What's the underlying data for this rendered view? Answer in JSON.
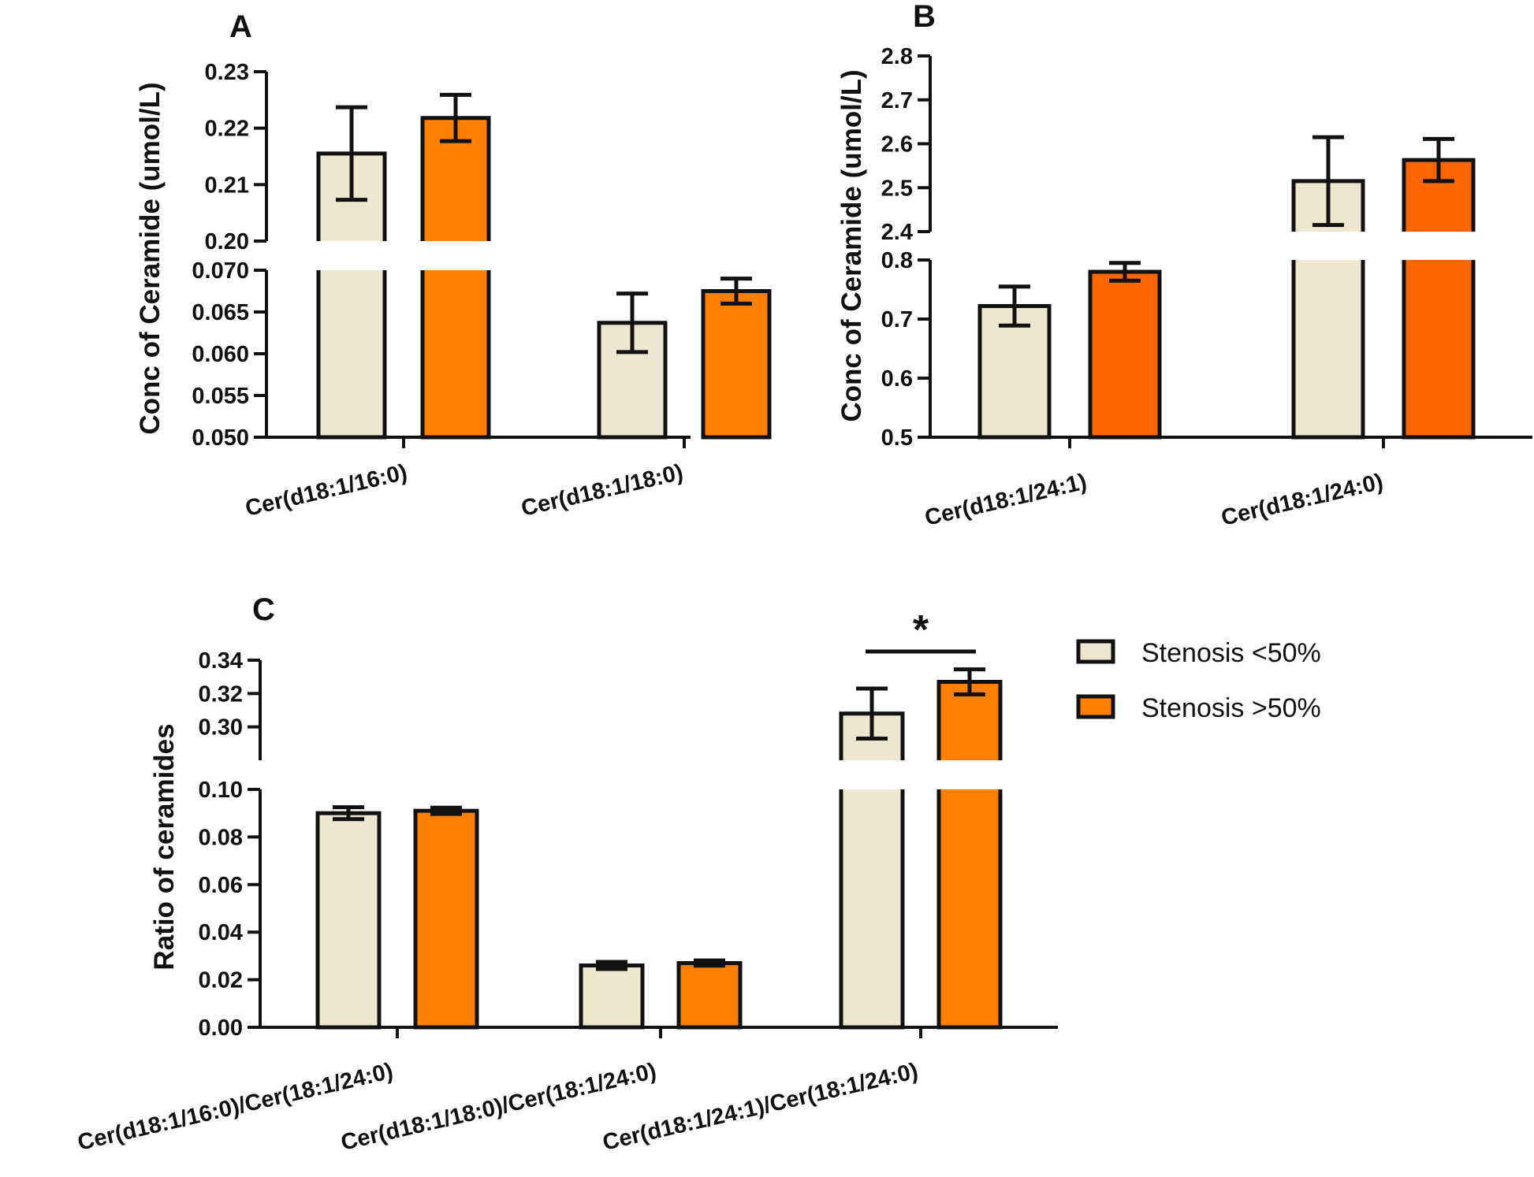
{
  "figure": {
    "legend": [
      {
        "label": "Stenosis <50%",
        "color": "#ede7d0"
      },
      {
        "label": "Stenosis >50%",
        "color": "#ff8000"
      }
    ]
  },
  "chart_data": [
    {
      "panel": "A",
      "type": "bar",
      "ylabel": "Conc of Ceramide (umol/L)",
      "categories": [
        "Cer(d18:1/16:0)",
        "Cer(d18:1/18:0)"
      ],
      "series": [
        {
          "name": "Stenosis <50%",
          "color": "#ede7d0",
          "values": [
            0.2155,
            0.0637
          ],
          "errors": [
            0.0082,
            0.0035
          ]
        },
        {
          "name": "Stenosis >50%",
          "color": "#ff8000",
          "values": [
            0.2218,
            0.0675
          ],
          "errors": [
            0.0041,
            0.0015
          ]
        }
      ],
      "axis_break": {
        "lower": {
          "ylim": [
            0.05,
            0.07
          ],
          "ticks": [
            0.05,
            0.055,
            0.06,
            0.065,
            0.07
          ],
          "tick_labels": [
            "0.050",
            "0.055",
            "0.060",
            "0.065",
            "0.070"
          ]
        },
        "upper": {
          "ylim": [
            0.2,
            0.23
          ],
          "ticks": [
            0.2,
            0.21,
            0.22,
            0.23
          ],
          "tick_labels": [
            "0.20",
            "0.21",
            "0.22",
            "0.23"
          ]
        }
      }
    },
    {
      "panel": "B",
      "type": "bar",
      "ylabel": "Conc of Ceramide (umol/L)",
      "categories": [
        "Cer(d18:1/24:1)",
        "Cer(d18:1/24:0)"
      ],
      "series": [
        {
          "name": "Stenosis <50%",
          "color": "#ede7d0",
          "values": [
            0.722,
            2.515
          ],
          "errors": [
            0.033,
            0.1
          ]
        },
        {
          "name": "Stenosis >50%",
          "color": "#ff6600",
          "values": [
            0.78,
            2.563
          ],
          "errors": [
            0.015,
            0.048
          ]
        }
      ],
      "axis_break": {
        "lower": {
          "ylim": [
            0.5,
            0.8
          ],
          "ticks": [
            0.5,
            0.6,
            0.7,
            0.8
          ],
          "tick_labels": [
            "0.5",
            "0.6",
            "0.7",
            "0.8"
          ]
        },
        "upper": {
          "ylim": [
            2.4,
            2.8
          ],
          "ticks": [
            2.4,
            2.5,
            2.6,
            2.7,
            2.8
          ],
          "tick_labels": [
            "2.4",
            "2.5",
            "2.6",
            "2.7",
            "2.8"
          ]
        }
      }
    },
    {
      "panel": "C",
      "type": "bar",
      "ylabel": "Ratio of ceramides",
      "categories": [
        "Cer(d18:1/16:0)/Cer(18:1/24:0)",
        "Cer(d18:1/18:0)/Cer(18:1/24:0)",
        "Cer(d18:1/24:1)/Cer(18:1/24:0)"
      ],
      "series": [
        {
          "name": "Stenosis <50%",
          "color": "#ede7d0",
          "values": [
            0.09,
            0.026,
            0.308
          ],
          "errors": [
            0.0025,
            0.0015,
            0.015
          ]
        },
        {
          "name": "Stenosis >50%",
          "color": "#ff8000",
          "values": [
            0.091,
            0.027,
            0.327
          ],
          "errors": [
            0.0013,
            0.0011,
            0.0075
          ]
        }
      ],
      "axis_break": {
        "lower": {
          "ylim": [
            0.0,
            0.1
          ],
          "ticks": [
            0.0,
            0.02,
            0.04,
            0.06,
            0.08,
            0.1
          ],
          "tick_labels": [
            "0.00",
            "0.02",
            "0.04",
            "0.06",
            "0.08",
            "0.10"
          ]
        },
        "upper": {
          "ylim": [
            0.28,
            0.34
          ],
          "ticks": [
            0.3,
            0.32,
            0.34
          ],
          "tick_labels": [
            "0.30",
            "0.32",
            "0.34"
          ]
        }
      },
      "annotations": [
        {
          "text": "*",
          "category": "Cer(d18:1/24:1)/Cer(18:1/24:0)"
        }
      ]
    }
  ]
}
